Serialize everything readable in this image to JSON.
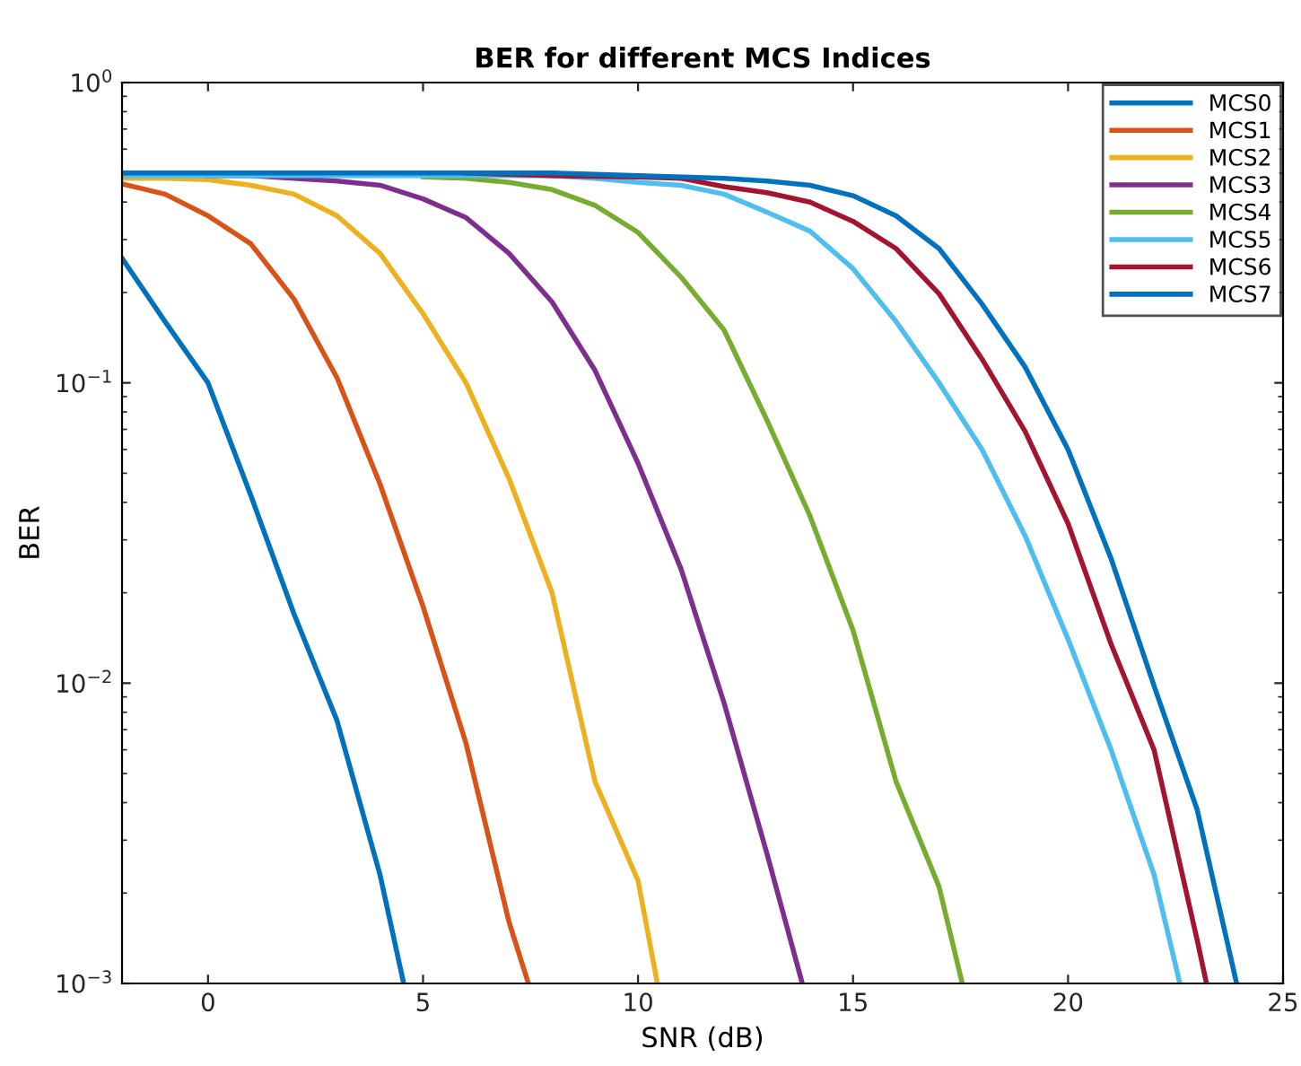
{
  "chart_data": {
    "type": "line",
    "title": "BER for different MCS Indices",
    "xlabel": "SNR (dB)",
    "ylabel": "BER",
    "log": "y",
    "grid": false,
    "legend": "top right",
    "marker": "none",
    "line_style": "solid",
    "xlim": [
      -2,
      25
    ],
    "xticks": [
      0,
      5,
      10,
      15,
      20,
      25
    ],
    "ylim": [
      0.001,
      1
    ],
    "yticks": [
      {
        "value": 0.001,
        "label": "10$^{−3}$"
      },
      {
        "value": 0.01,
        "label": "10$^{−2}$"
      },
      {
        "value": 0.1,
        "label": "10$^{−1}$"
      },
      {
        "value": 1,
        "label": "10$^{0}$"
      }
    ],
    "series": [
      {
        "name": "MCS0",
        "color": "#0072bd",
        "x": [
          -2,
          -1,
          0,
          1,
          2,
          3,
          4,
          4.55
        ],
        "values": [
          0.26,
          0.16,
          0.1,
          0.042,
          0.017,
          0.0075,
          0.0023,
          0.001
        ]
      },
      {
        "name": "MCS1",
        "color": "#d95319",
        "x": [
          -2,
          -1,
          0,
          1,
          2,
          3,
          4,
          5,
          6,
          7,
          7.45
        ],
        "values": [
          0.46,
          0.425,
          0.36,
          0.29,
          0.19,
          0.104,
          0.046,
          0.018,
          0.0063,
          0.0016,
          0.001
        ]
      },
      {
        "name": "MCS2",
        "color": "#edb120",
        "x": [
          -2,
          -1,
          0,
          1,
          2,
          3,
          4,
          5,
          6,
          7,
          8,
          9,
          10,
          10.45
        ],
        "values": [
          0.48,
          0.48,
          0.475,
          0.455,
          0.425,
          0.36,
          0.27,
          0.17,
          0.1,
          0.048,
          0.02,
          0.0047,
          0.0022,
          0.001
        ]
      },
      {
        "name": "MCS3",
        "color": "#7e2f8e",
        "x": [
          0,
          1,
          2,
          3,
          4,
          5,
          6,
          7,
          8,
          9,
          10,
          11,
          12,
          13,
          13.82
        ],
        "values": [
          0.49,
          0.49,
          0.48,
          0.47,
          0.455,
          0.41,
          0.355,
          0.27,
          0.186,
          0.11,
          0.054,
          0.024,
          0.0086,
          0.0027,
          0.001
        ]
      },
      {
        "name": "MCS4",
        "color": "#77ac30",
        "x": [
          5,
          6,
          7,
          8,
          9,
          10,
          11,
          12,
          13,
          14,
          15,
          16,
          17,
          17.54
        ],
        "values": [
          0.485,
          0.48,
          0.465,
          0.44,
          0.39,
          0.317,
          0.225,
          0.15,
          0.075,
          0.036,
          0.015,
          0.0047,
          0.0021,
          0.001
        ]
      },
      {
        "name": "MCS5",
        "color": "#4dbeee",
        "x": [
          -2,
          0,
          2,
          4,
          6,
          8,
          9,
          10,
          11,
          12,
          13,
          14,
          15,
          16,
          17,
          18,
          19,
          20,
          21,
          22,
          22.6
        ],
        "values": [
          0.49,
          0.49,
          0.49,
          0.49,
          0.49,
          0.49,
          0.48,
          0.465,
          0.455,
          0.425,
          0.37,
          0.32,
          0.24,
          0.16,
          0.1,
          0.06,
          0.031,
          0.014,
          0.006,
          0.0023,
          0.001
        ]
      },
      {
        "name": "MCS6",
        "color": "#a2142f",
        "x": [
          6,
          8,
          10,
          11,
          12,
          13,
          14,
          15,
          16,
          17,
          18,
          19,
          20,
          21,
          22,
          23,
          23.22
        ],
        "values": [
          0.5,
          0.49,
          0.485,
          0.48,
          0.45,
          0.43,
          0.4,
          0.345,
          0.28,
          0.198,
          0.12,
          0.069,
          0.034,
          0.0135,
          0.006,
          0.0014,
          0.001
        ]
      },
      {
        "name": "MCS7",
        "color": "#0072bd",
        "x": [
          -2,
          0,
          2,
          4,
          6,
          8,
          10,
          11,
          12,
          13,
          14,
          15,
          16,
          17,
          18,
          19,
          20,
          21,
          22,
          23,
          23.92
        ],
        "values": [
          0.5,
          0.5,
          0.5,
          0.5,
          0.5,
          0.5,
          0.49,
          0.485,
          0.48,
          0.47,
          0.455,
          0.42,
          0.36,
          0.28,
          0.183,
          0.113,
          0.06,
          0.026,
          0.0098,
          0.0038,
          0.001
        ]
      }
    ]
  }
}
